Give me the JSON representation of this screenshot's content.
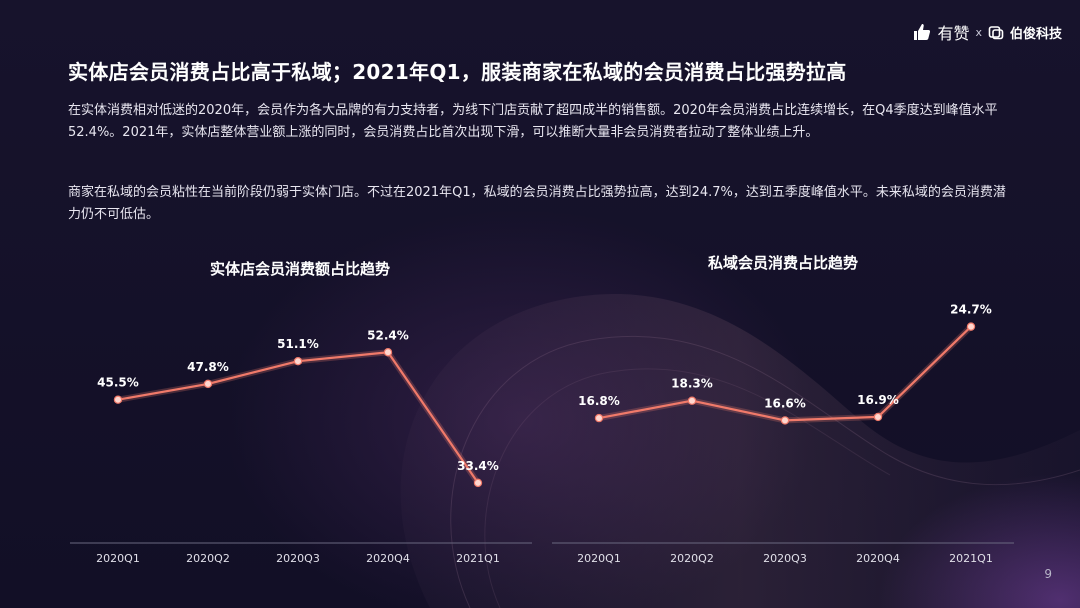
{
  "brand": {
    "youzan": "有赞",
    "sep": "x",
    "bojun": "伯俊科技"
  },
  "title": "实体店会员消费占比高于私域；2021年Q1，服装商家在私域的会员消费占比强势拉高",
  "paragraphs": [
    "在实体消费相对低迷的2020年，会员作为各大品牌的有力支持者，为线下门店贡献了超四成半的销售额。2020年会员消费占比连续增长，在Q4季度达到峰值水平52.4%。2021年，实体店整体营业额上涨的同时，会员消费占比首次出现下滑，可以推断大量非会员消费者拉动了整体业绩上升。",
    "商家在私域的会员粘性在当前阶段仍弱于实体门店。不过在2021年Q1，私域的会员消费占比强势拉高，达到24.7%，达到五季度峰值水平。未来私域的会员消费潜力仍不可低估。"
  ],
  "chart_data": [
    {
      "type": "line",
      "title": "实体店会员消费额占比趋势",
      "categories": [
        "2020Q1",
        "2020Q2",
        "2020Q3",
        "2020Q4",
        "2021Q1"
      ],
      "values": [
        45.5,
        47.8,
        51.1,
        52.4,
        33.4
      ],
      "data_labels": [
        "45.5%",
        "47.8%",
        "51.1%",
        "52.4%",
        "33.4%"
      ],
      "ylim": [
        28,
        60
      ],
      "grid": false,
      "color": "#f07a6a"
    },
    {
      "type": "line",
      "title": "私域会员消费占比趋势",
      "categories": [
        "2020Q1",
        "2020Q2",
        "2020Q3",
        "2020Q4",
        "2021Q1"
      ],
      "values": [
        16.8,
        18.3,
        16.6,
        16.9,
        24.7
      ],
      "data_labels": [
        "16.8%",
        "18.3%",
        "16.6%",
        "16.9%",
        "24.7%"
      ],
      "ylim": [
        8,
        27
      ],
      "grid": false,
      "color": "#f07a6a"
    }
  ],
  "page_number": "9",
  "colors": {
    "background": "#13102a",
    "line": "#f07a6a",
    "marker": "#ffd7cf"
  }
}
